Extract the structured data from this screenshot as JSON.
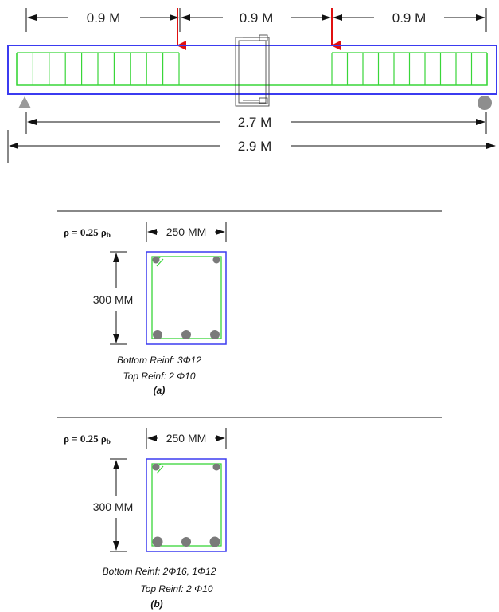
{
  "elevation": {
    "segment_1": "0.9 M",
    "segment_2": "0.9 M",
    "segment_3": "0.9 M",
    "clear_span": "2.7 M",
    "total_length": "2.9 M"
  },
  "section_a": {
    "ratio_label": "ρ = 0.25 ρb",
    "ratio_symbol": "ρ  = 0.25 ρ",
    "ratio_sub": "b",
    "width": "250 MM",
    "height": "300 MM",
    "bottom_reinf": "Bottom Reinf: 3Φ12",
    "top_reinf": "Top Reinf: 2 Φ10",
    "label": "(a)"
  },
  "section_b": {
    "ratio_label": "ρ = 0.25 ρb",
    "ratio_symbol": "ρ  = 0.25 ρ",
    "ratio_sub": "b",
    "width": "250 MM",
    "height": "300 MM",
    "bottom_reinf": "Bottom Reinf: 2Φ16, 1Φ12",
    "top_reinf": "Top Reinf: 2 Φ10",
    "label": "(b)"
  },
  "colors": {
    "beam_outline": "#3b3bf0",
    "stirrups": "#39d639",
    "load_arrow": "#e01010",
    "support": "#9a9a9a",
    "rebar": "#7a7a7a"
  }
}
